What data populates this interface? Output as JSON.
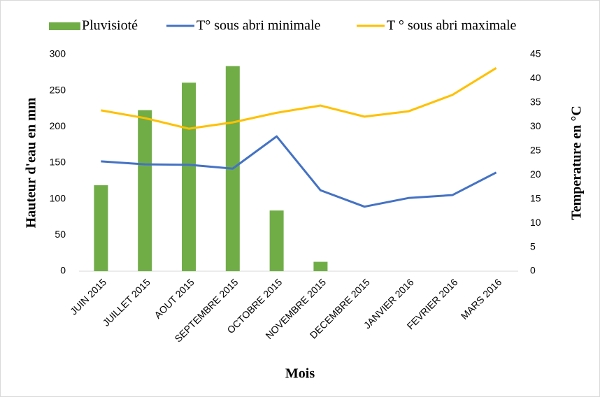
{
  "chart_data": {
    "type": "combo",
    "xlabel": "Mois",
    "ylabel": "Hauteur d'eau en  mm",
    "y2label": "Temperature en  °C",
    "categories": [
      "JUIN 2015",
      "JUILLET 2015",
      "AOUT 2015",
      "SEPTEMBRE 2015",
      "OCTOBRE 2015",
      "NOVEMBRE 2015",
      "DECEMBRE 2015",
      "JANVIER 2016",
      "FEVRIER 2016",
      "MARS 2016"
    ],
    "series": [
      {
        "name": "Pluvisioté",
        "type": "bar",
        "axis": "y",
        "color": "#70ad47",
        "values": [
          119,
          223,
          261,
          284,
          84,
          13,
          0,
          0,
          0,
          0
        ]
      },
      {
        "name": "T° sous abri minimale",
        "type": "line",
        "axis": "y2",
        "color": "#4472c4",
        "values": [
          22.8,
          22.2,
          22.1,
          21.3,
          28.0,
          16.8,
          13.4,
          15.2,
          15.8,
          20.5
        ]
      },
      {
        "name": "T ° sous abri maximale",
        "type": "line",
        "axis": "y2",
        "color": "#ffc000",
        "values": [
          33.4,
          31.8,
          29.6,
          30.9,
          32.9,
          34.4,
          32.1,
          33.2,
          36.6,
          42.2
        ]
      }
    ],
    "ylim": [
      0,
      300
    ],
    "yticks": [
      0,
      50,
      100,
      150,
      200,
      250,
      300
    ],
    "y2lim": [
      0,
      45
    ],
    "y2ticks": [
      0,
      5,
      10,
      15,
      20,
      25,
      30,
      35,
      40,
      45
    ],
    "legend": "top"
  }
}
